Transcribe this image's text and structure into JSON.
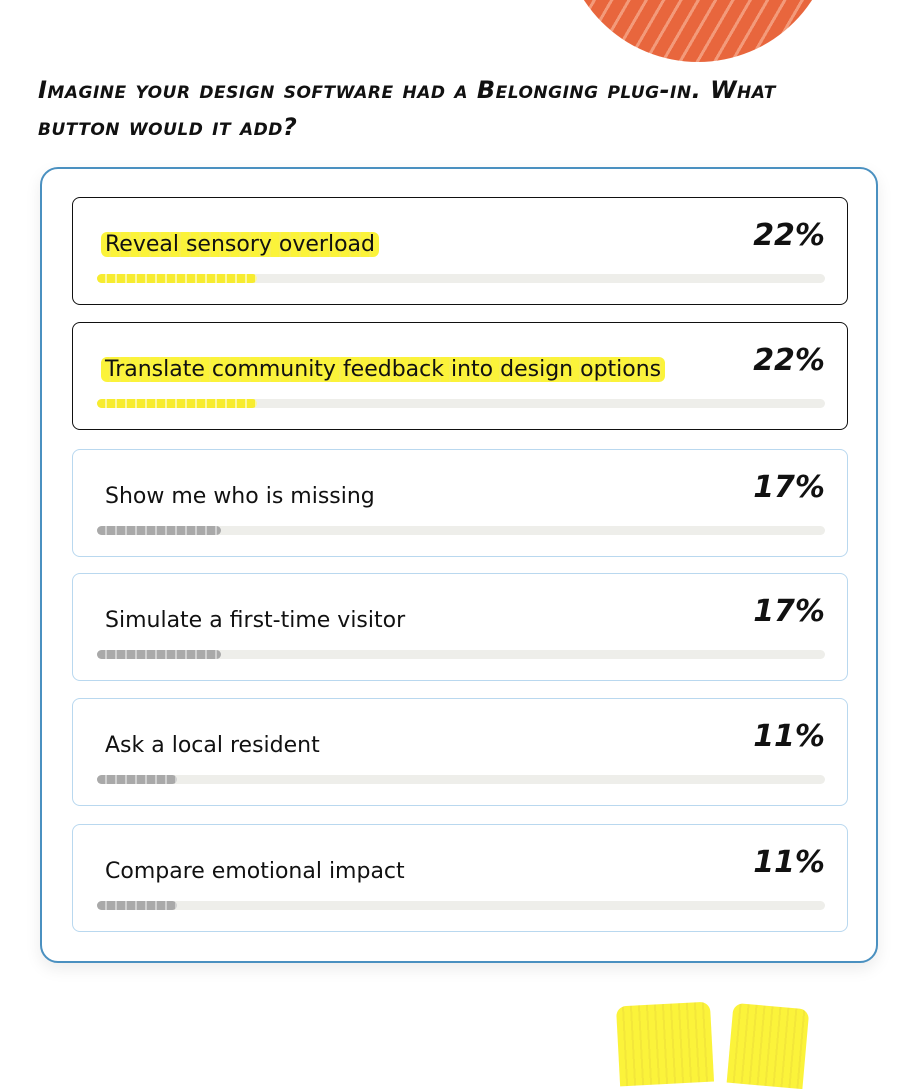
{
  "question": "Imagine your design software had a Belonging plug-in. What button would it add?",
  "options": [
    {
      "label": "Reveal sensory overload",
      "value": 22,
      "value_label": "22%"
    },
    {
      "label": "Translate community feedback into design options",
      "value": 22,
      "value_label": "22%"
    },
    {
      "label": "Show me who is missing",
      "value": 17,
      "value_label": "17%"
    },
    {
      "label": "Simulate a first-time visitor",
      "value": 17,
      "value_label": "17%"
    },
    {
      "label": "Ask a local resident",
      "value": 11,
      "value_label": "11%"
    },
    {
      "label": "Compare emotional impact",
      "value": 11,
      "value_label": "11%"
    }
  ]
}
